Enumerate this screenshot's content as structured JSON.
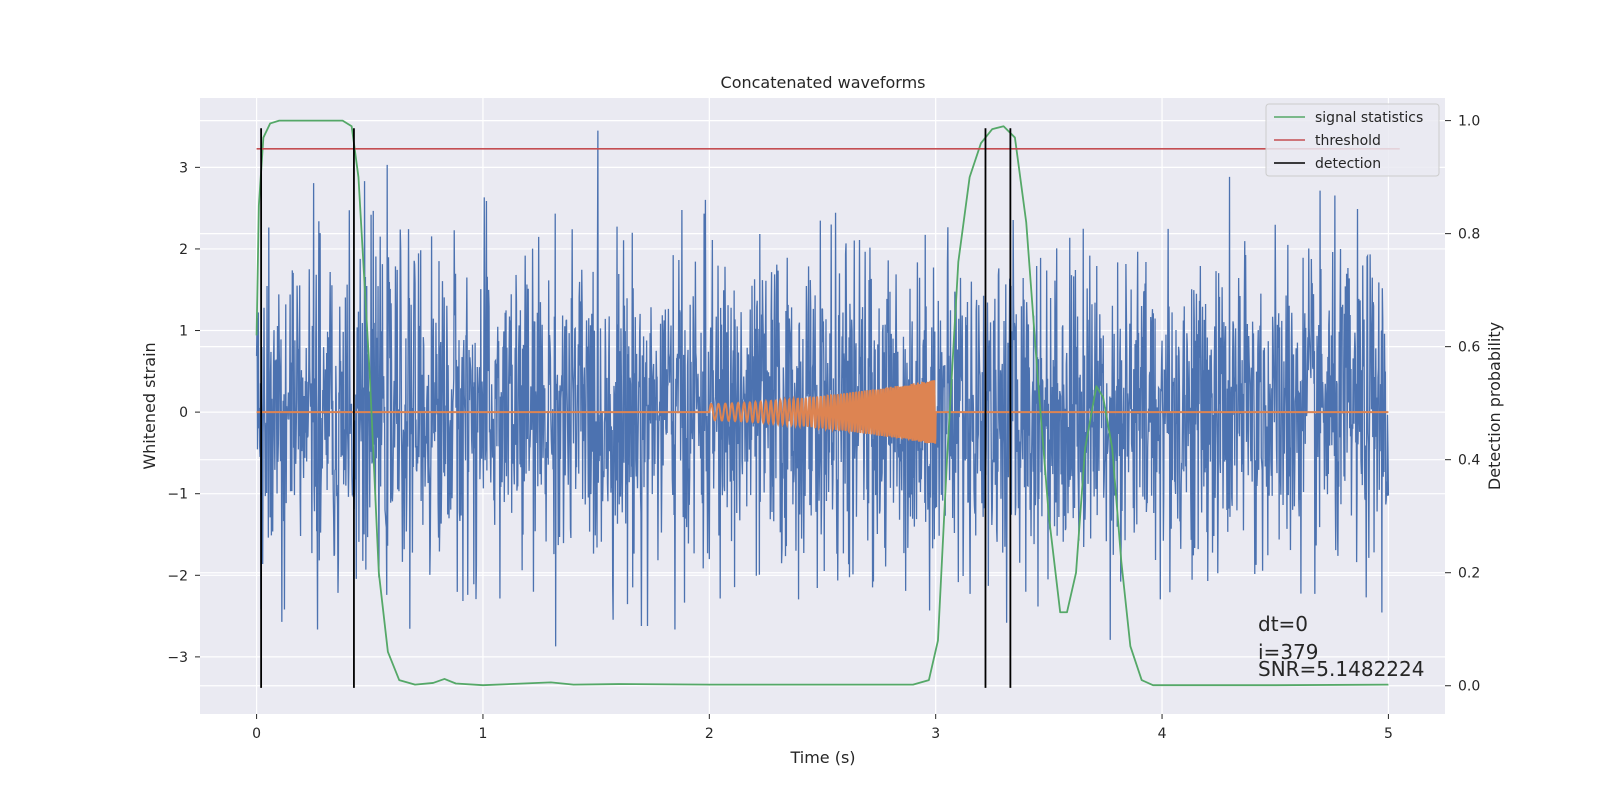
{
  "chart_data": {
    "type": "line",
    "title": "Concatenated waveforms",
    "xlabel": "Time (s)",
    "ylabel": "Whitened strain",
    "y2label": "Detection probability",
    "xlim": [
      -0.25,
      5.25
    ],
    "ylim": [
      -3.7,
      3.85
    ],
    "y2lim": [
      -0.05,
      1.04
    ],
    "x_ticks": [
      0,
      1,
      2,
      3,
      4,
      5
    ],
    "x_tick_labels": [
      "0",
      "1",
      "2",
      "3",
      "4",
      "5"
    ],
    "y_ticks": [
      -3,
      -2,
      -1,
      0,
      1,
      2,
      3
    ],
    "y_tick_labels": [
      "−3",
      "−2",
      "−1",
      "0",
      "1",
      "2",
      "3"
    ],
    "y2_ticks": [
      0.0,
      0.2,
      0.4,
      0.6,
      0.8,
      1.0
    ],
    "y2_tick_labels": [
      "0.0",
      "0.2",
      "0.4",
      "0.6",
      "0.8",
      "1.0"
    ],
    "grid": true,
    "legend_position": "top-right",
    "series": [
      {
        "name": "",
        "axis": "left",
        "kind": "noise",
        "color": "#4c72b0",
        "x_range": [
          0,
          5
        ],
        "typical_peak_abs": 2.0,
        "max": 3.45,
        "min": -3.4
      },
      {
        "name": "",
        "axis": "left",
        "kind": "chirp",
        "color": "#dd8452",
        "baseline": 0,
        "x_range": [
          0,
          5
        ],
        "chirp_start": 2.0,
        "chirp_end": 3.0,
        "amp_start": 0.1,
        "amp_end": 0.4
      },
      {
        "name": "signal statistics",
        "axis": "right",
        "color": "#55a868",
        "points": [
          [
            0.0,
            0.62
          ],
          [
            0.01,
            0.85
          ],
          [
            0.03,
            0.97
          ],
          [
            0.06,
            0.995
          ],
          [
            0.1,
            1.0
          ],
          [
            0.38,
            1.0
          ],
          [
            0.42,
            0.99
          ],
          [
            0.45,
            0.9
          ],
          [
            0.5,
            0.55
          ],
          [
            0.54,
            0.2
          ],
          [
            0.58,
            0.06
          ],
          [
            0.63,
            0.01
          ],
          [
            0.7,
            0.002
          ],
          [
            0.78,
            0.005
          ],
          [
            0.83,
            0.012
          ],
          [
            0.88,
            0.004
          ],
          [
            1.0,
            0.001
          ],
          [
            1.3,
            0.006
          ],
          [
            1.4,
            0.002
          ],
          [
            1.6,
            0.003
          ],
          [
            2.0,
            0.002
          ],
          [
            2.5,
            0.002
          ],
          [
            2.9,
            0.002
          ],
          [
            2.97,
            0.01
          ],
          [
            3.01,
            0.08
          ],
          [
            3.05,
            0.4
          ],
          [
            3.1,
            0.75
          ],
          [
            3.15,
            0.9
          ],
          [
            3.2,
            0.96
          ],
          [
            3.25,
            0.985
          ],
          [
            3.3,
            0.99
          ],
          [
            3.35,
            0.97
          ],
          [
            3.4,
            0.82
          ],
          [
            3.45,
            0.55
          ],
          [
            3.5,
            0.3
          ],
          [
            3.55,
            0.13
          ],
          [
            3.58,
            0.13
          ],
          [
            3.62,
            0.2
          ],
          [
            3.66,
            0.42
          ],
          [
            3.71,
            0.53
          ],
          [
            3.74,
            0.51
          ],
          [
            3.78,
            0.42
          ],
          [
            3.82,
            0.22
          ],
          [
            3.86,
            0.07
          ],
          [
            3.91,
            0.01
          ],
          [
            3.96,
            0.001
          ],
          [
            4.5,
            0.001
          ],
          [
            5.0,
            0.002
          ]
        ]
      },
      {
        "name": "threshold",
        "axis": "right",
        "color": "#c44e52",
        "x": [
          0,
          5.05
        ],
        "value": 0.95
      },
      {
        "name": "detection",
        "axis": "left",
        "color": "#000000",
        "x": [
          0.02,
          0.43,
          3.22,
          3.33
        ],
        "y_range": [
          -3.38,
          3.48
        ]
      }
    ],
    "annotations": [
      "dt=0",
      "i=379",
      "SNR=5.1482224"
    ],
    "colors": {
      "background": "#eaeaf2",
      "grid": "#ffffff",
      "text": "#262626"
    }
  }
}
